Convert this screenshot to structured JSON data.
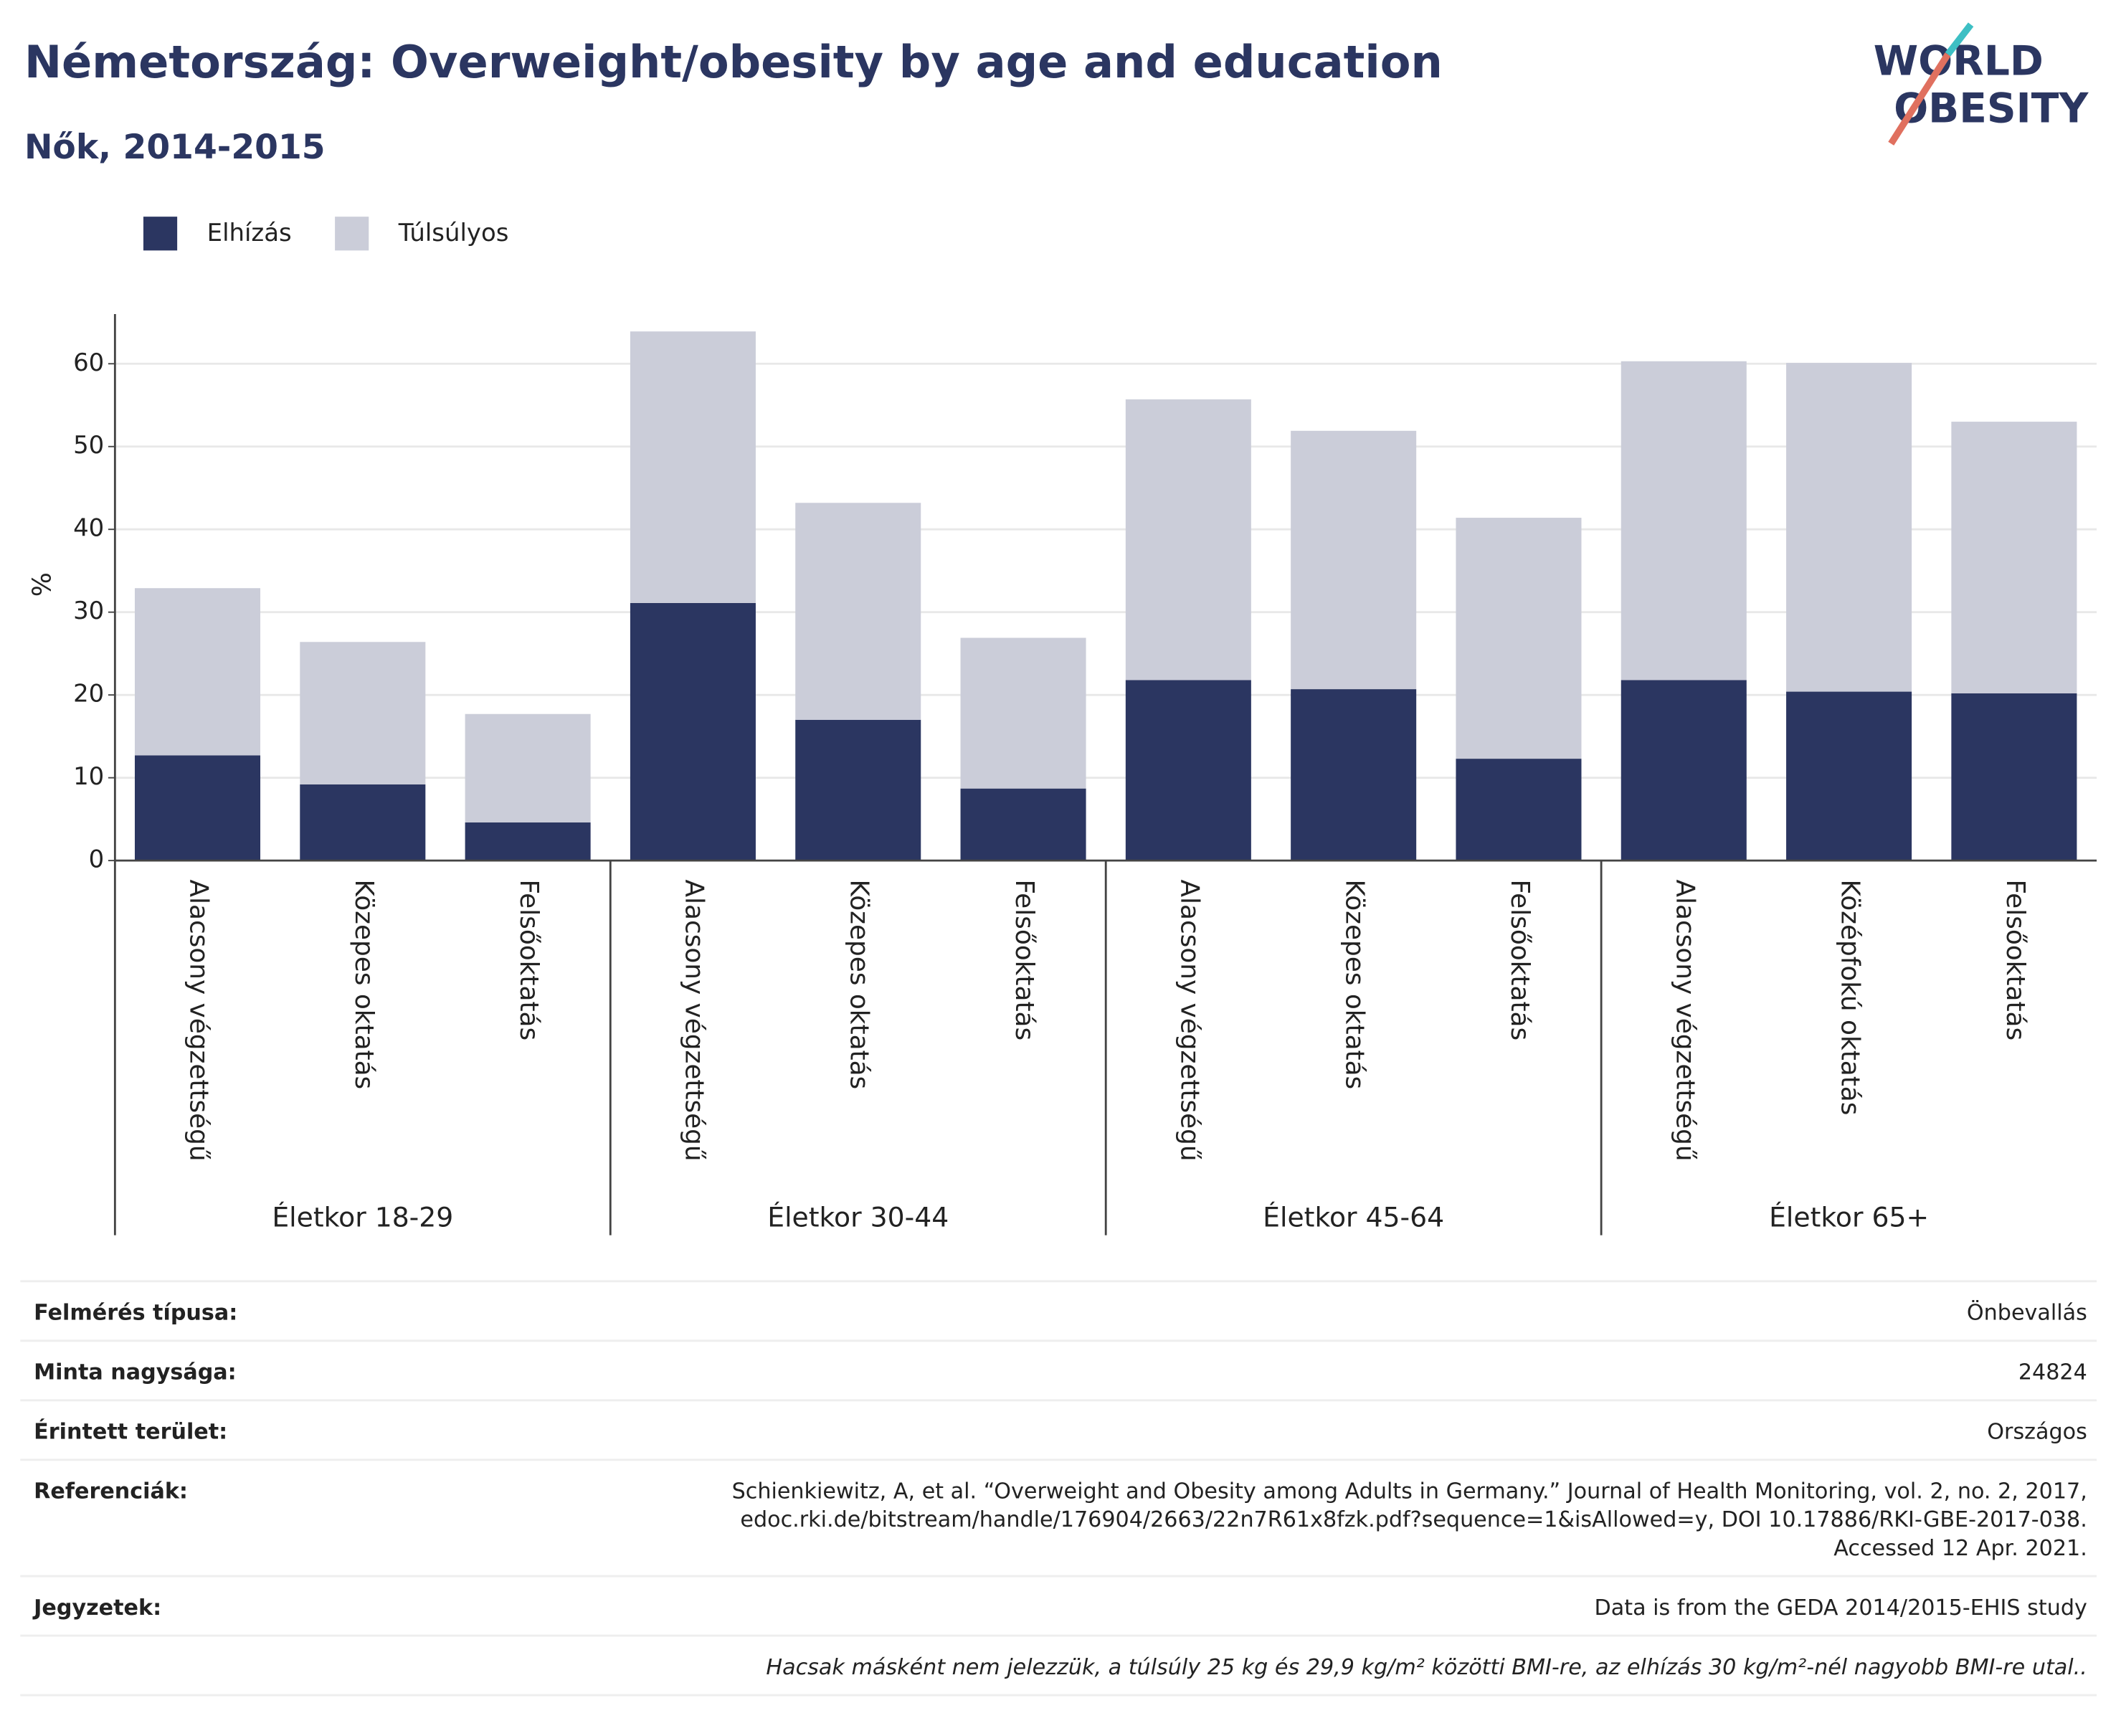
{
  "title": "Németország: Overweight/obesity by age and education",
  "subtitle": "Nők, 2014-2015",
  "logo": [
    "WORLD",
    "OBESITY"
  ],
  "chart_data": {
    "type": "bar",
    "stacked": true,
    "y_label": "%",
    "legend": "top-left",
    "grid": true,
    "groups": [
      "Életkor 18-29",
      "Életkor 30-44",
      "Életkor 45-64",
      "Életkor 65+"
    ],
    "categories": [
      "Alacsony végzettségű",
      "Közepes oktatás",
      "Felsőoktatás",
      "Alacsony végzettségű",
      "Közepes oktatás",
      "Felsőoktatás",
      "Alacsony végzettségű",
      "Közepes oktatás",
      "Felsőoktatás",
      "Alacsony végzettségű",
      "Középfokú oktatás",
      "Felsőoktatás"
    ],
    "series": [
      {
        "name": "Elhízás",
        "color": "#2b3661",
        "values": [
          12.7,
          9.2,
          4.6,
          31.1,
          17.0,
          8.7,
          21.8,
          20.7,
          12.3,
          21.8,
          20.4,
          20.2
        ]
      },
      {
        "name": "Túlsúlyos",
        "color": "#cbcdd9",
        "values": [
          20.2,
          17.2,
          13.1,
          32.8,
          26.2,
          18.2,
          33.9,
          31.2,
          29.1,
          38.5,
          39.7,
          32.8
        ]
      }
    ],
    "ylim": [
      0,
      66
    ],
    "yticks": [
      0,
      10,
      20,
      30,
      40,
      50,
      60
    ]
  },
  "footer": {
    "rows": [
      {
        "label": "Felmérés típusa:",
        "value": [
          "Önbevallás"
        ]
      },
      {
        "label": "Minta nagysága:",
        "value": [
          "24824"
        ]
      },
      {
        "label": "Érintett terület:",
        "value": [
          "Országos"
        ]
      },
      {
        "label": "Referenciák:",
        "value": [
          "Schienkiewitz, A, et al. “Overweight and Obesity among Adults in Germany.” Journal of Health Monitoring, vol. 2, no. 2, 2017,",
          "edoc.rki.de/bitstream/handle/176904/2663/22n7R61x8fzk.pdf?sequence=1&isAllowed=y, DOI 10.17886/RKI-GBE-2017-038.",
          "Accessed 12 Apr. 2021."
        ]
      },
      {
        "label": "Jegyzetek:",
        "value": [
          "Data is from the GEDA 2014/2015-EHIS study"
        ]
      }
    ],
    "note": "Hacsak másként nem jelezzük, a túlsúly 25 kg és 29,9 kg/m² közötti BMI-re, az elhízás 30 kg/m²-nél nagyobb BMI-re utal.."
  }
}
